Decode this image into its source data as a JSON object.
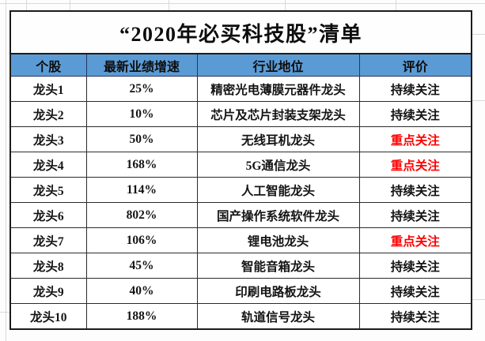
{
  "title": "“2020年必买科技股”清单",
  "colors": {
    "header_bg": "#5B9BD5",
    "header_divider": "#24365E",
    "emphasis_red": "#FE0000",
    "text": "#141414",
    "table_border": "#1C1C1C"
  },
  "chart_data": {
    "type": "table",
    "title": "“2020年必买科技股”清单",
    "columns": [
      "个股",
      "最新业绩增速",
      "行业地位",
      "评价"
    ],
    "rows": [
      [
        "龙头1",
        "25%",
        "精密光电薄膜元器件龙头",
        "持续关注"
      ],
      [
        "龙头2",
        "10%",
        "芯片及芯片封装支架龙头",
        "持续关注"
      ],
      [
        "龙头3",
        "50%",
        "无线耳机龙头",
        "重点关注"
      ],
      [
        "龙头4",
        "168%",
        "5G通信龙头",
        "重点关注"
      ],
      [
        "龙头5",
        "114%",
        "人工智能龙头",
        "持续关注"
      ],
      [
        "龙头6",
        "802%",
        "国产操作系统软件龙头",
        "持续关注"
      ],
      [
        "龙头7",
        "106%",
        "锂电池龙头",
        "重点关注"
      ],
      [
        "龙头8",
        "45%",
        "智能音箱龙头",
        "持续关注"
      ],
      [
        "龙头9",
        "40%",
        "印刷电路板龙头",
        "持续关注"
      ],
      [
        "龙头10",
        "188%",
        "轨道信号龙头",
        "持续关注"
      ]
    ],
    "emphasized_rating": "重点关注",
    "normal_rating": "持续关注"
  }
}
